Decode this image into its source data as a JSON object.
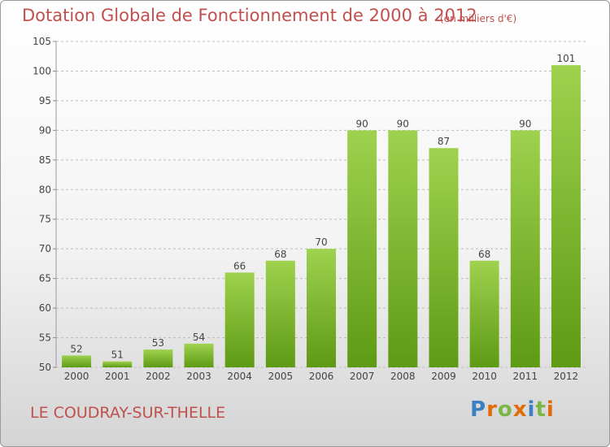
{
  "header": {
    "title": "Dotation Globale de Fonctionnement de 2000 à 2012",
    "subtitle": "(en milliers d'€)"
  },
  "footer": {
    "commune": "LE COUDRAY-SUR-THELLE",
    "logo_text": "Proxiti",
    "logo_letters": [
      {
        "ch": "P",
        "color": "#3b7fc4"
      },
      {
        "ch": "r",
        "color": "#e36c0a"
      },
      {
        "ch": "o",
        "color": "#7ab648"
      },
      {
        "ch": "x",
        "color": "#e36c0a"
      },
      {
        "ch": "i",
        "color": "#3b7fc4"
      },
      {
        "ch": "t",
        "color": "#7ab648"
      },
      {
        "ch": "i",
        "color": "#e36c0a"
      }
    ]
  },
  "colors": {
    "title": "#c0504d",
    "bar_light": "#9fd24e",
    "bar_dark": "#5e9a14",
    "grid": "#bdbdbd",
    "axis_text": "#444444"
  },
  "chart_data": {
    "type": "bar",
    "title": "Dotation Globale de Fonctionnement de 2000 à 2012",
    "subtitle": "(en milliers d'€)",
    "categories": [
      "2000",
      "2001",
      "2002",
      "2003",
      "2004",
      "2005",
      "2006",
      "2007",
      "2008",
      "2009",
      "2010",
      "2011",
      "2012"
    ],
    "values": [
      52,
      51,
      53,
      54,
      66,
      68,
      70,
      90,
      90,
      87,
      68,
      90,
      101
    ],
    "data_labels": [
      "52",
      "51",
      "53",
      "54",
      "66",
      "68",
      "70",
      "90",
      "90",
      "87",
      "68",
      "90",
      "101"
    ],
    "xlabel": "",
    "ylabel": "",
    "ylim": [
      50,
      105
    ],
    "yticks": [
      50,
      55,
      60,
      65,
      70,
      75,
      80,
      85,
      90,
      95,
      100,
      105
    ],
    "grid": true
  }
}
